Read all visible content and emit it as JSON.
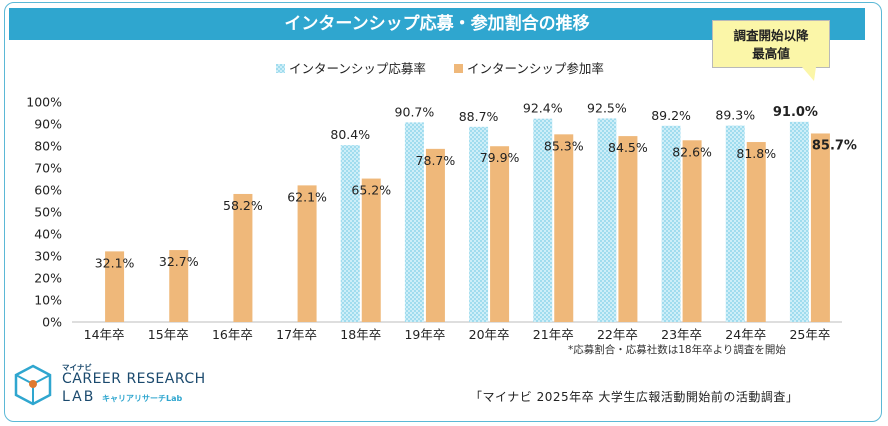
{
  "chart_data": {
    "type": "bar",
    "title": "インターンシップ応募・参加割合の推移",
    "categories": [
      "14年卒",
      "15年卒",
      "16年卒",
      "17年卒",
      "18年卒",
      "19年卒",
      "20年卒",
      "21年卒",
      "22年卒",
      "23年卒",
      "24年卒",
      "25年卒"
    ],
    "series": [
      {
        "name": "インターンシップ応募率",
        "values": [
          null,
          null,
          null,
          null,
          80.4,
          90.7,
          88.7,
          92.4,
          92.5,
          89.2,
          89.3,
          91.0
        ],
        "color": "#bde7f3"
      },
      {
        "name": "インターンシップ参加率",
        "values": [
          32.1,
          32.7,
          58.2,
          62.1,
          65.2,
          78.7,
          79.9,
          85.3,
          84.5,
          82.6,
          81.8,
          85.7
        ],
        "color": "#efb87a"
      }
    ],
    "ylim": [
      0,
      100
    ],
    "yticks": [
      "0%",
      "10%",
      "20%",
      "30%",
      "40%",
      "50%",
      "60%",
      "70%",
      "80%",
      "90%",
      "100%"
    ],
    "legend": "top",
    "highlight_index": 11
  },
  "callout": {
    "line1": "調査開始以降",
    "line2": "最高値"
  },
  "footnote": "*応募割合・応募社数は18年卒より調査を開始",
  "source": "「マイナビ 2025年卒 大学生広報活動開始前の活動調査」",
  "logo": {
    "small": "マイナビ",
    "main": "CAREER RESEARCH",
    "lab": "LAB",
    "kana": "キャリアリサーチLab"
  }
}
